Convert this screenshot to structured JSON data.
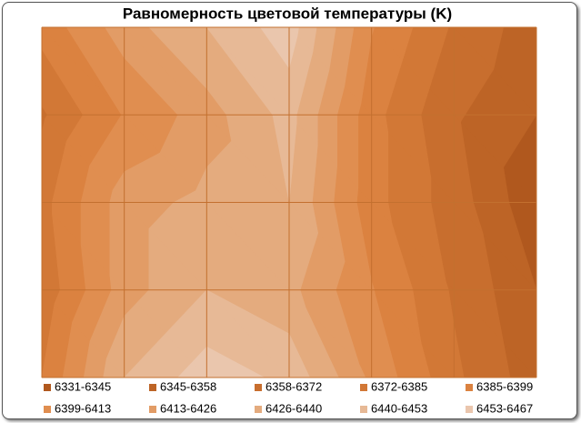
{
  "chart_data": {
    "type": "contour",
    "title": "Равномерность цветовой температуры (K)",
    "levels": [
      6331,
      6345,
      6358,
      6372,
      6385,
      6399,
      6413,
      6426,
      6440,
      6453,
      6467
    ],
    "series": [
      {
        "name": "6331-6345",
        "color": "#b0581e"
      },
      {
        "name": "6345-6358",
        "color": "#bd6426"
      },
      {
        "name": "6358-6372",
        "color": "#c86e2e"
      },
      {
        "name": "6372-6385",
        "color": "#d27836"
      },
      {
        "name": "6385-6399",
        "color": "#db8240"
      },
      {
        "name": "6399-6413",
        "color": "#e08e50"
      },
      {
        "name": "6413-6426",
        "color": "#e29c66"
      },
      {
        "name": "6426-6440",
        "color": "#e4ab7e"
      },
      {
        "name": "6440-6453",
        "color": "#e7b996"
      },
      {
        "name": "6453-6467",
        "color": "#eac6ad"
      }
    ],
    "z": [
      [
        6390,
        6420,
        6440,
        6460,
        6400,
        6370,
        6350
      ],
      [
        6370,
        6400,
        6420,
        6445,
        6390,
        6360,
        6345
      ],
      [
        6380,
        6420,
        6430,
        6440,
        6390,
        6365,
        6335
      ],
      [
        6375,
        6420,
        6440,
        6430,
        6400,
        6370,
        6345
      ],
      [
        6385,
        6440,
        6460,
        6450,
        6410,
        6375,
        6350
      ]
    ],
    "grid": true
  }
}
